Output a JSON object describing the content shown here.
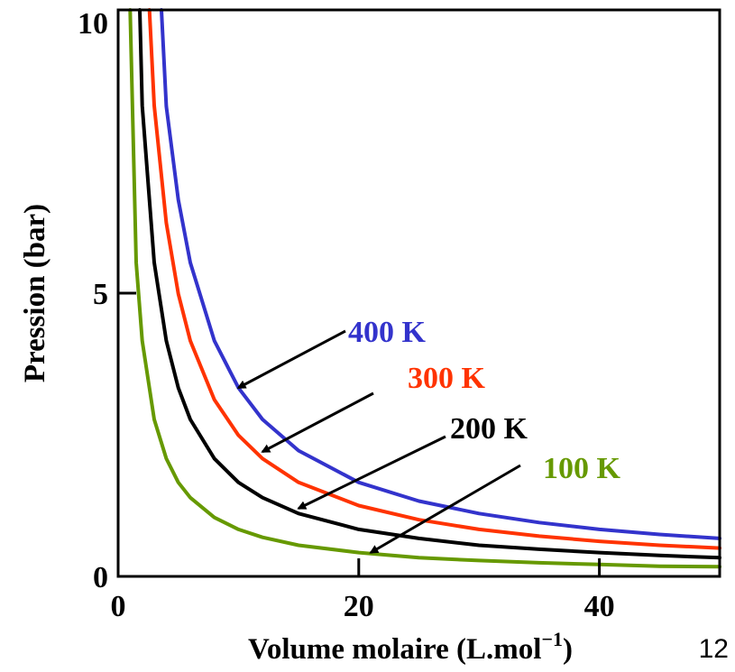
{
  "chart_data": {
    "type": "line",
    "xlabel": "Volume molaire (L.mol",
    "xlabel_sup": "−1",
    "xlabel_close": ")",
    "ylabel": "Pression (bar)",
    "xlim": [
      0,
      50
    ],
    "ylim": [
      0,
      10
    ],
    "x_ticks": [
      {
        "value": 0,
        "label": "0"
      },
      {
        "value": 20,
        "label": "20"
      },
      {
        "value": 40,
        "label": "40"
      }
    ],
    "y_ticks": [
      {
        "value": 0,
        "label": "0"
      },
      {
        "value": 5,
        "label": "5"
      },
      {
        "value": 10,
        "label": "10"
      }
    ],
    "grid": false,
    "series": [
      {
        "name": "400 K",
        "color": "#3333CC",
        "x": [
          3.6,
          4,
          5,
          6,
          8,
          10,
          12,
          15,
          20,
          25,
          30,
          35,
          40,
          45,
          50
        ],
        "y": [
          10,
          8.3,
          6.65,
          5.54,
          4.16,
          3.33,
          2.77,
          2.22,
          1.66,
          1.33,
          1.11,
          0.95,
          0.83,
          0.74,
          0.67
        ]
      },
      {
        "name": "300 K",
        "color": "#FF3300",
        "x": [
          2.6,
          3,
          4,
          5,
          6,
          8,
          10,
          12,
          15,
          20,
          25,
          30,
          35,
          40,
          45,
          50
        ],
        "y": [
          10,
          8.31,
          6.24,
          4.99,
          4.16,
          3.12,
          2.49,
          2.08,
          1.66,
          1.25,
          1.0,
          0.83,
          0.71,
          0.62,
          0.55,
          0.5
        ]
      },
      {
        "name": "200 K",
        "color": "#000000",
        "x": [
          1.8,
          2,
          3,
          4,
          5,
          6,
          8,
          10,
          12,
          15,
          20,
          25,
          30,
          35,
          40,
          45,
          50
        ],
        "y": [
          10,
          8.31,
          5.54,
          4.16,
          3.33,
          2.77,
          2.08,
          1.66,
          1.39,
          1.11,
          0.83,
          0.67,
          0.55,
          0.48,
          0.42,
          0.37,
          0.33
        ]
      },
      {
        "name": "100 K",
        "color": "#669900",
        "x": [
          1.0,
          1.5,
          2,
          3,
          4,
          5,
          6,
          8,
          10,
          12,
          15,
          20,
          25,
          30,
          35,
          40,
          45,
          50
        ],
        "y": [
          10,
          5.54,
          4.16,
          2.77,
          2.08,
          1.66,
          1.39,
          1.04,
          0.83,
          0.69,
          0.55,
          0.42,
          0.33,
          0.28,
          0.24,
          0.21,
          0.18,
          0.17
        ]
      }
    ],
    "annotations": [
      {
        "label": "400 K",
        "color": "#3333CC",
        "target": [
          10,
          3.33
        ]
      },
      {
        "label": "300 K",
        "color": "#FF3300",
        "target": [
          12,
          2.2
        ]
      },
      {
        "label": "200 K",
        "color": "#000000",
        "target": [
          15,
          1.2
        ]
      },
      {
        "label": "100 K",
        "color": "#669900",
        "target": [
          21,
          0.42
        ]
      }
    ]
  },
  "page_number": "12"
}
